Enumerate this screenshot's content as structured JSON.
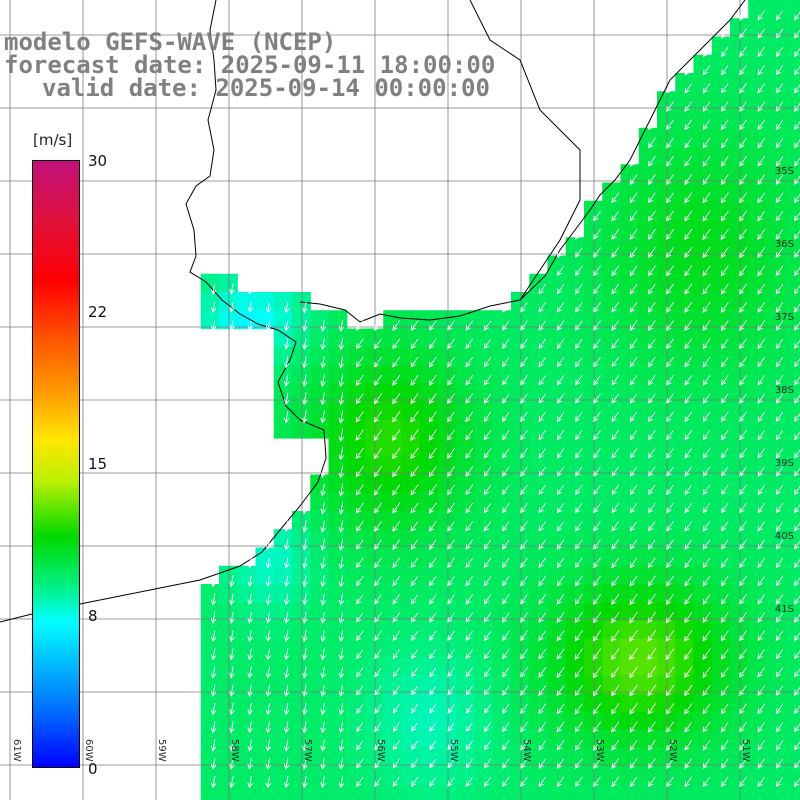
{
  "title": {
    "line1": "modelo GEFS-WAVE (NCEP)",
    "line2": "forecast date: 2025-09-11 18:00:00",
    "line3": "valid date: 2025-09-14 00:00:00"
  },
  "colorbar": {
    "unit": "[m/s]",
    "ticks": [
      "30",
      "22",
      "15",
      "8",
      "0"
    ],
    "tick_values": [
      30,
      22,
      15,
      8,
      0
    ],
    "range": [
      0,
      30
    ],
    "colors": [
      "#0000ff",
      "#0060ff",
      "#00b0ff",
      "#00ffff",
      "#00f080",
      "#00d800",
      "#b8f000",
      "#ffe600",
      "#ff9a00",
      "#ff5a00",
      "#ff0000",
      "#e0103a",
      "#c0127a"
    ]
  },
  "map": {
    "variable": "wind speed",
    "wind_direction": "from northeast",
    "longitude_labels": [
      "61W",
      "60W",
      "59W",
      "58W",
      "57W",
      "56W",
      "55W",
      "54W",
      "53W",
      "52W",
      "51W"
    ],
    "latitude_labels": [
      "35S",
      "36S",
      "37S",
      "38S",
      "39S",
      "40S",
      "41S"
    ],
    "land_color": "#ffffff",
    "grid_color": "#7a7a7a",
    "coast_color": "#000000"
  }
}
